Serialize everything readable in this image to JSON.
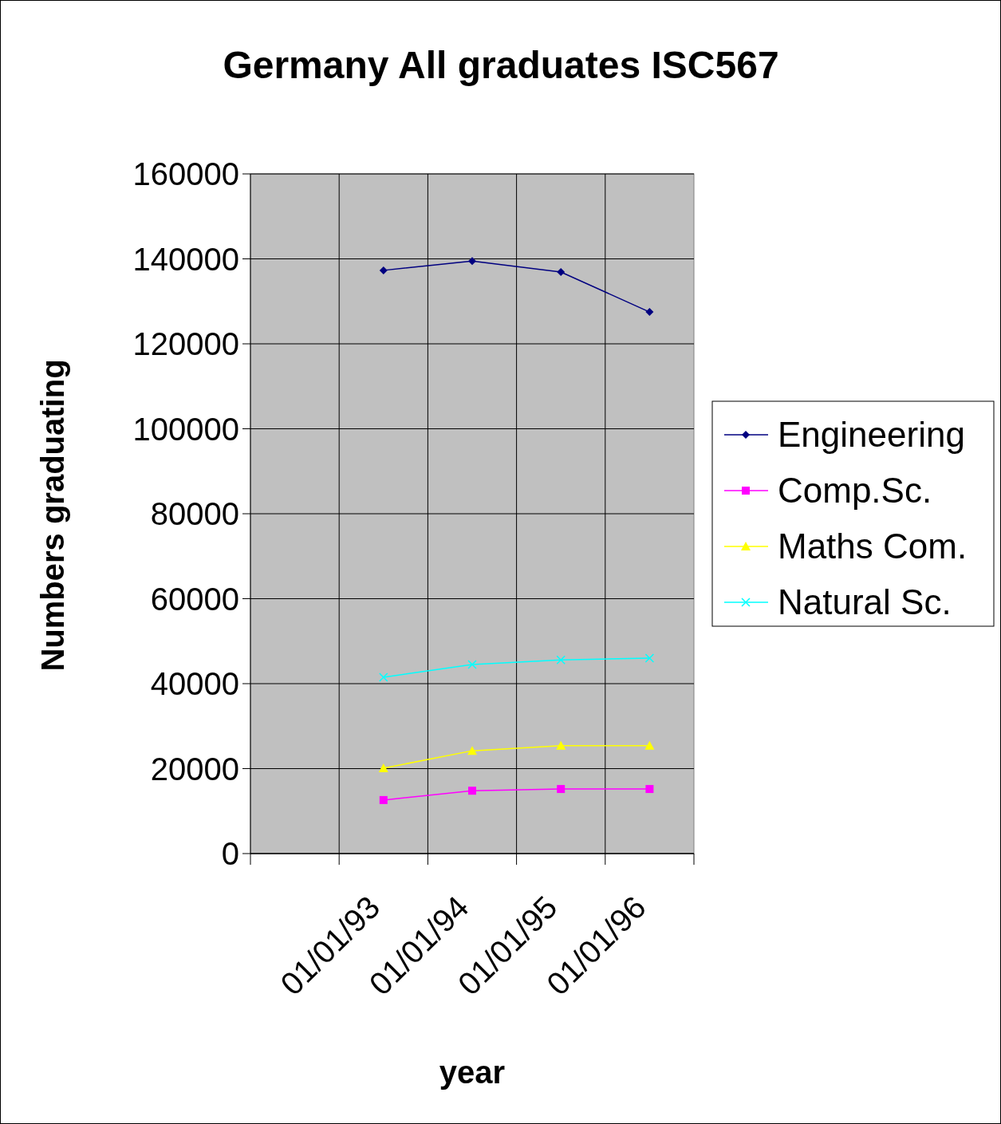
{
  "chart_data": {
    "type": "line",
    "title": "Germany All graduates ISC567",
    "xlabel": "year",
    "ylabel": "Numbers graduating",
    "categories": [
      null,
      "01/01/93",
      "01/01/94",
      "01/01/95",
      "01/01/96"
    ],
    "series": [
      {
        "name": "Engineering",
        "color": "#000080",
        "marker": "diamond",
        "values": [
          null,
          137300,
          139500,
          136900,
          127500
        ]
      },
      {
        "name": "Comp.Sc.",
        "color": "#ff00ff",
        "marker": "square",
        "values": [
          null,
          12600,
          14800,
          15200,
          15200
        ]
      },
      {
        "name": "Maths Com.",
        "color": "#ffff00",
        "marker": "triangle",
        "values": [
          null,
          20100,
          24200,
          25400,
          25400
        ]
      },
      {
        "name": "Natural Sc.",
        "color": "#00ffff",
        "marker": "cross",
        "values": [
          null,
          41500,
          44500,
          45600,
          46000
        ]
      }
    ],
    "ylim": [
      0,
      160000
    ],
    "yticks": [
      0,
      20000,
      40000,
      60000,
      80000,
      100000,
      120000,
      140000,
      160000
    ],
    "grid": true,
    "legend": "right",
    "line_style": "solid"
  }
}
